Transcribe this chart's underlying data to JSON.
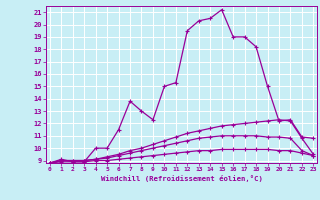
{
  "xlabel": "Windchill (Refroidissement éolien,°C)",
  "x_values": [
    0,
    1,
    2,
    3,
    4,
    5,
    6,
    7,
    8,
    9,
    10,
    11,
    12,
    13,
    14,
    15,
    16,
    17,
    18,
    19,
    20,
    21,
    22,
    23
  ],
  "line1": [
    8.8,
    9.1,
    8.9,
    8.9,
    10.0,
    10.0,
    11.5,
    13.8,
    13.0,
    12.3,
    15.0,
    15.3,
    19.5,
    20.3,
    20.5,
    21.2,
    19.0,
    19.0,
    18.2,
    15.0,
    12.2,
    12.3,
    10.9,
    10.8
  ],
  "line2": [
    8.8,
    9.0,
    9.0,
    9.0,
    9.1,
    9.3,
    9.5,
    9.8,
    10.0,
    10.3,
    10.6,
    10.9,
    11.2,
    11.4,
    11.6,
    11.8,
    11.9,
    12.0,
    12.1,
    12.2,
    12.3,
    12.2,
    10.8,
    9.5
  ],
  "line3": [
    8.8,
    9.0,
    9.0,
    9.0,
    9.1,
    9.2,
    9.4,
    9.6,
    9.8,
    10.0,
    10.2,
    10.4,
    10.6,
    10.8,
    10.9,
    11.0,
    11.0,
    11.0,
    11.0,
    10.9,
    10.9,
    10.8,
    9.8,
    9.4
  ],
  "line4": [
    8.8,
    8.9,
    8.9,
    8.9,
    9.0,
    9.0,
    9.1,
    9.2,
    9.3,
    9.4,
    9.5,
    9.6,
    9.7,
    9.8,
    9.8,
    9.9,
    9.9,
    9.9,
    9.9,
    9.9,
    9.8,
    9.8,
    9.6,
    9.4
  ],
  "line_color": "#990099",
  "bg_color": "#c8eef5",
  "grid_color": "#b0d8e0",
  "ylim_min": 9,
  "ylim_max": 21.5,
  "xlim_min": 0,
  "xlim_max": 23,
  "yticks": [
    9,
    10,
    11,
    12,
    13,
    14,
    15,
    16,
    17,
    18,
    19,
    20,
    21
  ],
  "xticks": [
    0,
    1,
    2,
    3,
    4,
    5,
    6,
    7,
    8,
    9,
    10,
    11,
    12,
    13,
    14,
    15,
    16,
    17,
    18,
    19,
    20,
    21,
    22,
    23
  ]
}
